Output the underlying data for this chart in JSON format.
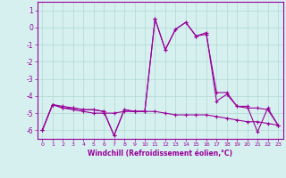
{
  "xlabel": "Windchill (Refroidissement éolien,°C)",
  "background_color": "#d6f0f0",
  "grid_color": "#b0d8d0",
  "line_color": "#990099",
  "xlim": [
    -0.5,
    23.5
  ],
  "ylim": [
    -6.5,
    1.5
  ],
  "yticks": [
    1,
    0,
    -1,
    -2,
    -3,
    -4,
    -5,
    -6
  ],
  "xticks": [
    0,
    1,
    2,
    3,
    4,
    5,
    6,
    7,
    8,
    9,
    10,
    11,
    12,
    13,
    14,
    15,
    16,
    17,
    18,
    19,
    20,
    21,
    22,
    23
  ],
  "series1_x": [
    0,
    1,
    2,
    3,
    4,
    5,
    6,
    7,
    8,
    9,
    10,
    11,
    12,
    13,
    14,
    15,
    16,
    17,
    18,
    19,
    20,
    21,
    22,
    23
  ],
  "series1_y": [
    -6.0,
    -4.5,
    -4.7,
    -4.7,
    -4.8,
    -4.8,
    -4.9,
    -6.3,
    -4.8,
    -4.9,
    -4.9,
    0.5,
    -1.3,
    -0.1,
    0.3,
    -0.5,
    -0.4,
    -3.8,
    -3.8,
    -4.6,
    -4.6,
    -6.1,
    -4.7,
    -5.7
  ],
  "series2_x": [
    0,
    1,
    2,
    3,
    4,
    5,
    6,
    7,
    8,
    9,
    10,
    11,
    12,
    13,
    14,
    15,
    16,
    17,
    18,
    19,
    20,
    21,
    22,
    23
  ],
  "series2_y": [
    -6.0,
    -4.5,
    -4.7,
    -4.8,
    -4.9,
    -5.0,
    -5.0,
    -5.0,
    -4.9,
    -4.9,
    -4.9,
    -4.9,
    -5.0,
    -5.1,
    -5.1,
    -5.1,
    -5.1,
    -5.2,
    -5.3,
    -5.4,
    -5.5,
    -5.5,
    -5.6,
    -5.7
  ],
  "series3_x": [
    0,
    1,
    2,
    3,
    4,
    5,
    6,
    7,
    8,
    9,
    10,
    11,
    12,
    13,
    14,
    15,
    16,
    17,
    18,
    19,
    20,
    21,
    22,
    23
  ],
  "series3_y": [
    -6.0,
    -4.5,
    -4.6,
    -4.7,
    -4.8,
    -4.8,
    -4.9,
    -6.3,
    -4.8,
    -4.9,
    -4.9,
    0.5,
    -1.3,
    -0.1,
    0.3,
    -0.5,
    -0.3,
    -4.3,
    -3.9,
    -4.6,
    -4.7,
    -4.7,
    -4.8,
    -5.7
  ]
}
